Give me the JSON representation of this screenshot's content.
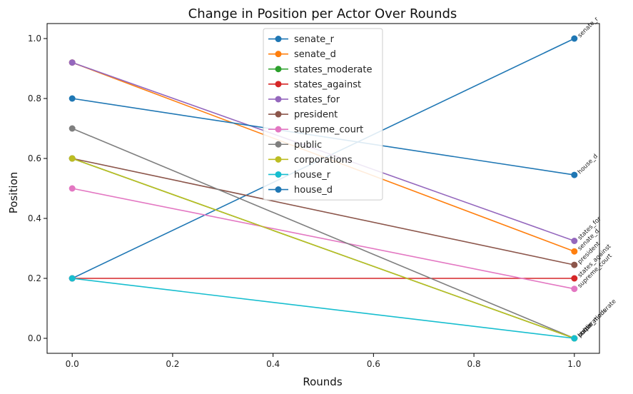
{
  "chart_data": {
    "type": "line",
    "title": "Change in Position per Actor Over Rounds",
    "xlabel": "Rounds",
    "ylabel": "Position",
    "xlim": [
      -0.05,
      1.05
    ],
    "ylim": [
      -0.05,
      1.05
    ],
    "xticks": [
      0.0,
      0.2,
      0.4,
      0.6,
      0.8,
      1.0
    ],
    "xtick_labels": [
      "0.0",
      "0.2",
      "0.4",
      "0.6",
      "0.8",
      "1.0"
    ],
    "yticks": [
      0.0,
      0.2,
      0.4,
      0.6,
      0.8,
      1.0
    ],
    "ytick_labels": [
      "0.0",
      "0.2",
      "0.4",
      "0.6",
      "0.8",
      "1.0"
    ],
    "grid": false,
    "legend_position": "upper-center",
    "x": [
      0,
      1
    ],
    "series": [
      {
        "name": "senate_r",
        "color": "#1f77b4",
        "values": [
          0.2,
          1.0
        ],
        "end_label": "senate_r"
      },
      {
        "name": "senate_d",
        "color": "#ff7f0e",
        "values": [
          0.92,
          0.29
        ],
        "end_label": "senate_d"
      },
      {
        "name": "states_moderate",
        "color": "#2ca02c",
        "values": [
          0.6,
          0.0
        ],
        "end_label": "states_moderate"
      },
      {
        "name": "states_against",
        "color": "#d62728",
        "values": [
          0.2,
          0.2
        ],
        "end_label": "states_against"
      },
      {
        "name": "states_for",
        "color": "#9467bd",
        "values": [
          0.92,
          0.325
        ],
        "end_label": "states_for"
      },
      {
        "name": "president",
        "color": "#8c564b",
        "values": [
          0.6,
          0.245
        ],
        "end_label": "president"
      },
      {
        "name": "supreme_court",
        "color": "#e377c2",
        "values": [
          0.5,
          0.165
        ],
        "end_label": "supreme_court"
      },
      {
        "name": "public",
        "color": "#7f7f7f",
        "values": [
          0.7,
          0.0
        ],
        "end_label": "public"
      },
      {
        "name": "corporations",
        "color": "#bcbd22",
        "values": [
          0.6,
          0.0
        ],
        "end_label": "corporations"
      },
      {
        "name": "house_r",
        "color": "#17becf",
        "values": [
          0.2,
          0.0
        ],
        "end_label": "house_r"
      },
      {
        "name": "house_d",
        "color": "#1f77b4",
        "values": [
          0.8,
          0.545
        ],
        "end_label": "house_d"
      }
    ]
  }
}
